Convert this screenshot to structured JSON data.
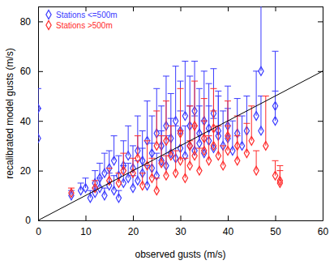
{
  "chart_data": {
    "type": "scatter",
    "x_label": "observed gusts (m/s)",
    "y_label": "recalibrated model gusts (m/s)",
    "xlim": [
      0,
      60
    ],
    "ylim": [
      0,
      86
    ],
    "xticks": [
      0,
      10,
      20,
      30,
      40,
      50,
      60
    ],
    "yticks": [
      0,
      20,
      40,
      60,
      80
    ],
    "grid": false,
    "legend": "upper left",
    "series": [
      {
        "name": "Stations <=500m",
        "color": "#3a3aff",
        "marker": "diamond",
        "x": [
          7,
          9,
          10,
          11,
          12,
          12,
          13,
          13,
          14,
          14,
          15,
          15,
          16,
          16,
          17,
          17,
          18,
          18,
          19,
          19,
          20,
          20,
          21,
          21,
          22,
          22,
          23,
          23,
          24,
          24,
          25,
          25,
          26,
          26,
          27,
          27,
          28,
          28,
          29,
          29,
          30,
          30,
          31,
          31,
          32,
          32,
          33,
          33,
          34,
          34,
          35,
          35,
          36,
          36,
          37,
          37,
          38,
          38,
          39,
          40,
          40,
          41,
          42,
          43,
          44,
          46,
          47,
          47,
          50,
          50,
          0,
          0
        ],
        "values": [
          10,
          12,
          13,
          9,
          15,
          11,
          17,
          13,
          19,
          10,
          21,
          14,
          12,
          24,
          18,
          9,
          22,
          15,
          26,
          17,
          13,
          21,
          28,
          16,
          24,
          19,
          32,
          14,
          27,
          21,
          35,
          18,
          30,
          24,
          38,
          22,
          33,
          27,
          40,
          25,
          36,
          29,
          42,
          26,
          38,
          30,
          44,
          28,
          35,
          31,
          40,
          27,
          37,
          32,
          43,
          29,
          34,
          36,
          30,
          38,
          33,
          28,
          35,
          30,
          36,
          42,
          60,
          36,
          46,
          40,
          33,
          45
        ],
        "errors": [
          2,
          3,
          4,
          3,
          5,
          2,
          6,
          4,
          8,
          3,
          7,
          5,
          6,
          10,
          8,
          3,
          10,
          7,
          12,
          6,
          5,
          9,
          14,
          8,
          12,
          10,
          16,
          8,
          15,
          10,
          18,
          9,
          16,
          12,
          20,
          12,
          18,
          14,
          22,
          13,
          20,
          15,
          22,
          12,
          20,
          16,
          20,
          14,
          18,
          15,
          20,
          13,
          18,
          14,
          18,
          12,
          16,
          16,
          14,
          16,
          12,
          12,
          14,
          12,
          14,
          18,
          35,
          14,
          22,
          12,
          12,
          8
        ]
      },
      {
        "name": "Stations >500m",
        "color": "#ff2a2a",
        "marker": "diamond",
        "x": [
          7,
          12,
          15,
          17,
          18,
          20,
          21,
          22,
          23,
          24,
          25,
          25,
          26,
          27,
          27,
          28,
          29,
          30,
          30,
          31,
          32,
          32,
          33,
          33,
          34,
          35,
          35,
          36,
          37,
          37,
          38,
          39,
          40,
          40,
          42,
          42,
          44,
          45,
          46,
          48,
          50,
          51,
          51
        ],
        "values": [
          11,
          13,
          16,
          15,
          20,
          19,
          25,
          14,
          22,
          17,
          30,
          12,
          23,
          32,
          18,
          26,
          19,
          35,
          24,
          17,
          30,
          22,
          38,
          26,
          20,
          33,
          28,
          24,
          37,
          30,
          26,
          22,
          34,
          28,
          30,
          24,
          27,
          32,
          20,
          30,
          18,
          16,
          15
        ],
        "errors": [
          2,
          3,
          5,
          4,
          7,
          6,
          9,
          5,
          10,
          8,
          14,
          5,
          11,
          16,
          8,
          12,
          9,
          18,
          12,
          8,
          16,
          10,
          18,
          12,
          9,
          16,
          12,
          10,
          16,
          14,
          12,
          8,
          14,
          10,
          12,
          10,
          12,
          14,
          8,
          20,
          6,
          6,
          5
        ]
      }
    ],
    "reference_line": {
      "x": [
        0,
        60
      ],
      "values": [
        0,
        60
      ],
      "color": "#000000"
    }
  }
}
